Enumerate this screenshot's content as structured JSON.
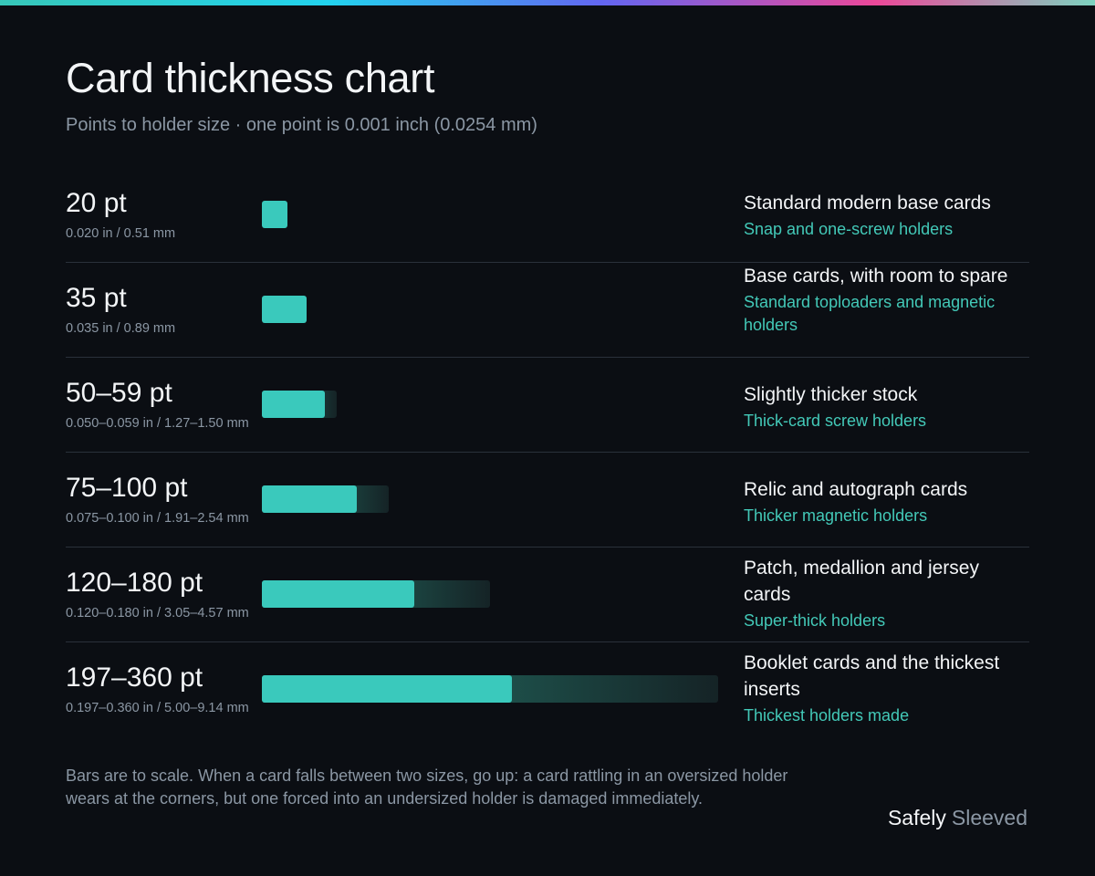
{
  "title": "Card thickness chart",
  "subtitle": "Points to holder size · one point is 0.001 inch (0.0254 mm)",
  "chart_data": {
    "type": "bar",
    "orientation": "horizontal",
    "x_max": 360,
    "unit": "pt",
    "rows": [
      {
        "label": "20 pt",
        "min": 20,
        "max": 20,
        "dims": "0.020 in / 0.51 mm",
        "use": "Standard modern base cards",
        "holder": "Snap and one-screw holders"
      },
      {
        "label": "35 pt",
        "min": 35,
        "max": 35,
        "dims": "0.035 in / 0.89 mm",
        "use": "Base cards, with room to spare",
        "holder": "Standard toploaders and magnetic holders"
      },
      {
        "label": "50–59 pt",
        "min": 50,
        "max": 59,
        "dims": "0.050–0.059 in / 1.27–1.50 mm",
        "use": "Slightly thicker stock",
        "holder": "Thick-card screw holders"
      },
      {
        "label": "75–100 pt",
        "min": 75,
        "max": 100,
        "dims": "0.075–0.100 in / 1.91–2.54 mm",
        "use": "Relic and autograph cards",
        "holder": "Thicker magnetic holders"
      },
      {
        "label": "120–180 pt",
        "min": 120,
        "max": 180,
        "dims": "0.120–0.180 in / 3.05–4.57 mm",
        "use": "Patch, medallion and jersey cards",
        "holder": "Super-thick holders"
      },
      {
        "label": "197–360 pt",
        "min": 197,
        "max": 360,
        "dims": "0.197–0.360 in / 5.00–9.14 mm",
        "use": "Booklet cards and the thickest inserts",
        "holder": "Thickest holders made"
      }
    ]
  },
  "footnote": "Bars are to scale. When a card falls between two sizes, go up: a card rattling in an oversized holder wears at the corners, but one forced into an undersized holder is damaged immediately.",
  "brand": {
    "first": "Safely",
    "second": "Sleeved"
  },
  "colors": {
    "accent": "#3ac9bc",
    "holder_text": "#43c9b8",
    "background": "#0b0e13",
    "muted": "#8b97a4"
  }
}
